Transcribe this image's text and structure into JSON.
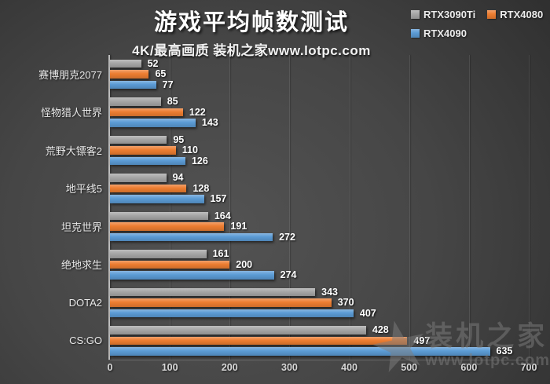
{
  "header": {
    "title": "游戏平均帧数测试",
    "subtitle": "4K/最高画质 装机之家www.lotpc.com"
  },
  "chart_data": {
    "type": "bar",
    "orientation": "horizontal",
    "title": "游戏平均帧数测试",
    "subtitle": "4K/最高画质 装机之家www.lotpc.com",
    "categories": [
      "赛博朋克2077",
      "怪物猎人世界",
      "荒野大镖客2",
      "地平线5",
      "坦克世界",
      "绝地求生",
      "DOTA2",
      "CS:GO"
    ],
    "series": [
      {
        "name": "RTX3090Ti",
        "color": "#a6a6a6",
        "values": [
          52,
          85,
          95,
          94,
          164,
          161,
          343,
          428
        ]
      },
      {
        "name": "RTX4080",
        "color": "#ed7d31",
        "values": [
          65,
          122,
          110,
          128,
          191,
          200,
          370,
          497
        ]
      },
      {
        "name": "RTX4090",
        "color": "#5b9bd5",
        "values": [
          77,
          143,
          126,
          157,
          272,
          274,
          407,
          635
        ]
      }
    ],
    "xlim": [
      0,
      700
    ],
    "x_ticks": [
      0,
      100,
      200,
      300,
      400,
      500,
      600,
      700
    ],
    "grid": true,
    "legend_position": "top-right",
    "value_labels": true,
    "background": "dark-gradient",
    "colors": {
      "text": "#ffffff",
      "axis": "#bdbdbd",
      "gridline": "rgba(255,255,255,0.09)"
    }
  },
  "watermark": {
    "star": "★",
    "line1": "装机之家",
    "line2": "www.lotpc.com"
  }
}
